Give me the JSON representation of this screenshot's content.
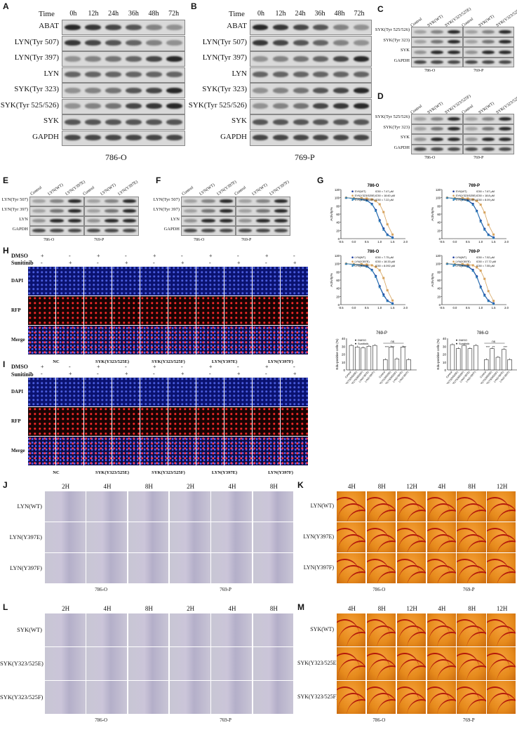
{
  "panels": {
    "A": {
      "label": "A",
      "time_label": "Time",
      "times": [
        "0h",
        "12h",
        "24h",
        "36h",
        "48h",
        "72h"
      ],
      "rows": [
        "ABAT",
        "LYN(Tyr 507)",
        "LYN(Tyr 397)",
        "LYN",
        "SYK(Tyr 323)",
        "SYK(Tyr 525/526)",
        "SYK",
        "GAPDH"
      ],
      "cell_line": "786-O"
    },
    "B": {
      "label": "B",
      "time_label": "Time",
      "times": [
        "0h",
        "12h",
        "24h",
        "36h",
        "48h",
        "72h"
      ],
      "rows": [
        "ABAT",
        "LYN(Tyr 507)",
        "LYN(Tyr 397)",
        "LYN",
        "SYK(Tyr 323)",
        "SYK(Tyr 525/526)",
        "SYK",
        "GAPDH"
      ],
      "cell_line": "769-P"
    },
    "C": {
      "label": "C",
      "columns": [
        "Control",
        "SYK(WT)",
        "SYK(Y323/525E)",
        "Control",
        "SYK(WT)",
        "SYK(Y323/525E)"
      ],
      "rows": [
        "SYK(Tyr 525/526)",
        "SYK(Tyr 323)",
        "SYK",
        "GAPDH"
      ],
      "cell_lines": [
        "786-O",
        "769-P"
      ]
    },
    "D": {
      "label": "D",
      "columns": [
        "Control",
        "SYK(WT)",
        "SYK(Y323/525F)",
        "Control",
        "SYK(WT)",
        "SYK(Y323/525F)"
      ],
      "rows": [
        "SYK(Tyr 525/526)",
        "SYK(Tyr 323)",
        "SYK",
        "GAPDH"
      ],
      "cell_lines": [
        "786-O",
        "769-P"
      ]
    },
    "E": {
      "label": "E",
      "columns": [
        "Control",
        "LYN(WT)",
        "LYN(Y397E)",
        "Control",
        "LYN(WT)",
        "LYN(Y397E)"
      ],
      "rows": [
        "LYN(Tyr 507)",
        "LYN(Tyr 397)",
        "LYN",
        "GAPDH"
      ],
      "cell_lines": [
        "786-O",
        "769-P"
      ]
    },
    "F": {
      "label": "F",
      "columns": [
        "Control",
        "LYN(WT)",
        "LYN(Y397F)",
        "Control",
        "LYN(WT)",
        "LYN(Y397F)"
      ],
      "rows": [
        "LYN(Tyr 507)",
        "LYN(Tyr 397)",
        "LYN",
        "GAPDH"
      ],
      "cell_lines": [
        "786-O",
        "769-P"
      ]
    },
    "G": {
      "label": "G"
    },
    "H": {
      "label": "H",
      "dmso_label": "DMSO",
      "sun_label": "Sunitinib",
      "dmso_signs": [
        "+",
        "-",
        "+",
        "-",
        "+",
        "-",
        "+",
        "-",
        "+",
        "-",
        "+",
        "-"
      ],
      "sun_signs": [
        "-",
        "+",
        "-",
        "+",
        "-",
        "+",
        "-",
        "+",
        "-",
        "+",
        "-",
        "+"
      ],
      "rows": [
        "DAPI",
        "RFP",
        "Merge"
      ],
      "groups": [
        "NC",
        "SYK(Y323/525E)",
        "SYK(Y323/525F)",
        "LYN(Y397E)",
        "LYN(Y397F)"
      ]
    },
    "I": {
      "label": "I",
      "dmso_label": "DMSO",
      "sun_label": "Sunitinib",
      "dmso_signs": [
        "+",
        "-",
        "+",
        "-",
        "+",
        "-",
        "+",
        "-",
        "+",
        "-",
        "+",
        "-"
      ],
      "sun_signs": [
        "-",
        "+",
        "-",
        "+",
        "-",
        "+",
        "-",
        "+",
        "-",
        "+",
        "-",
        "+"
      ],
      "rows": [
        "DAPI",
        "RFP",
        "Merge"
      ],
      "groups": [
        "NC",
        "SYK(Y323/525E)",
        "SYK(Y323/525F)",
        "LYN(Y397E)",
        "LYN(Y397F)"
      ]
    },
    "J": {
      "label": "J",
      "times": [
        "2H",
        "4H",
        "8H",
        "2H",
        "4H",
        "8H"
      ],
      "rows": [
        "LYN(WT)",
        "LYN(Y397E)",
        "LYN(Y397F)"
      ],
      "cell_lines": [
        "786-O",
        "769-P"
      ]
    },
    "K": {
      "label": "K",
      "times": [
        "4H",
        "8H",
        "12H",
        "4H",
        "8H",
        "12H"
      ],
      "rows": [
        "LYN(WT)",
        "LYN(Y397E)",
        "LYN(Y397F)"
      ],
      "cell_lines": [
        "786-O",
        "769-P"
      ]
    },
    "L": {
      "label": "L",
      "times": [
        "2H",
        "4H",
        "8H",
        "2H",
        "4H",
        "8H"
      ],
      "rows": [
        "SYK(WT)",
        "SYK(Y323/525E)",
        "SYK(Y323/525F)"
      ],
      "cell_lines": [
        "786-O",
        "769-P"
      ]
    },
    "M": {
      "label": "M",
      "times": [
        "4H",
        "8H",
        "12H",
        "4H",
        "8H",
        "12H"
      ],
      "rows": [
        "SYK(WT)",
        "SYK(Y323/525E)",
        "SYK(Y323/525F)"
      ],
      "cell_lines": [
        "786-O",
        "769-P"
      ]
    }
  },
  "chart_data": [
    {
      "type": "scatter",
      "title": "786-O",
      "xlim": [
        -0.5,
        2.0
      ],
      "ylim": [
        0,
        120
      ],
      "ylabel": "Activity%",
      "series": [
        {
          "name": "SYK(WT)",
          "ic50": "IC50 = 7.47 μM",
          "color": "#1f3f9f",
          "x": [
            -0.3,
            0,
            0.3,
            0.5,
            0.7,
            0.85,
            1.0,
            1.15,
            1.3,
            1.5
          ],
          "y": [
            100,
            98,
            97,
            94,
            85,
            70,
            45,
            25,
            10,
            3
          ]
        },
        {
          "name": "SYK(Y323/525E)",
          "ic50": "IC50 = 18.60 μM",
          "color": "#d6a25c",
          "x": [
            -0.3,
            0,
            0.3,
            0.5,
            0.7,
            0.85,
            1.0,
            1.15,
            1.3,
            1.5
          ],
          "y": [
            100,
            99,
            99,
            98,
            96,
            92,
            84,
            65,
            35,
            10
          ]
        },
        {
          "name": "SYK(Y323/525F)",
          "ic50": "IC50 = 7.22 μM",
          "color": "#2b7fb8",
          "x": [
            -0.3,
            0,
            0.3,
            0.5,
            0.7,
            0.85,
            1.0,
            1.15,
            1.3,
            1.5
          ],
          "y": [
            100,
            98,
            96,
            93,
            84,
            68,
            43,
            22,
            9,
            2
          ]
        }
      ]
    },
    {
      "type": "scatter",
      "title": "769-P",
      "xlim": [
        -0.5,
        2.0
      ],
      "ylim": [
        0,
        120
      ],
      "ylabel": "Activity%",
      "series": [
        {
          "name": "SYK(WT)",
          "ic50": "IC50 = 7.67 μM",
          "color": "#1f3f9f",
          "x": [
            -0.3,
            0,
            0.3,
            0.5,
            0.7,
            0.85,
            1.0,
            1.15,
            1.3,
            1.5
          ],
          "y": [
            100,
            98,
            97,
            94,
            85,
            68,
            44,
            24,
            10,
            3
          ]
        },
        {
          "name": "SYK(Y323/525E)",
          "ic50": "IC50 = 18.8 μM",
          "color": "#d6a25c",
          "x": [
            -0.3,
            0,
            0.3,
            0.5,
            0.7,
            0.85,
            1.0,
            1.15,
            1.3,
            1.5
          ],
          "y": [
            100,
            99,
            99,
            98,
            96,
            92,
            83,
            64,
            34,
            10
          ]
        },
        {
          "name": "SYK(Y323/525F)",
          "ic50": "IC50 = 8.09 μM",
          "color": "#2b7fb8",
          "x": [
            -0.3,
            0,
            0.3,
            0.5,
            0.7,
            0.85,
            1.0,
            1.15,
            1.3,
            1.5
          ],
          "y": [
            100,
            98,
            96,
            93,
            83,
            67,
            42,
            22,
            9,
            2
          ]
        }
      ]
    },
    {
      "type": "scatter",
      "title": "786-O",
      "xlim": [
        -0.5,
        2.0
      ],
      "ylim": [
        0,
        120
      ],
      "ylabel": "Activity%",
      "series": [
        {
          "name": "LYN(WT)",
          "ic50": "IC50 = 7.75 μM",
          "color": "#1f3f9f",
          "x": [
            -0.3,
            0,
            0.3,
            0.5,
            0.7,
            0.85,
            1.0,
            1.15,
            1.3,
            1.5
          ],
          "y": [
            100,
            98,
            97,
            94,
            85,
            70,
            45,
            25,
            10,
            3
          ]
        },
        {
          "name": "LYN(Y397E)",
          "ic50": "IC50 = 18.33 μM",
          "color": "#d6a25c",
          "x": [
            -0.3,
            0,
            0.3,
            0.5,
            0.7,
            0.85,
            1.0,
            1.15,
            1.3,
            1.5
          ],
          "y": [
            100,
            99,
            99,
            98,
            96,
            92,
            84,
            65,
            35,
            10
          ]
        },
        {
          "name": "LYN(Y397F)",
          "ic50": "IC50 = 8.092 μM",
          "color": "#2b7fb8",
          "x": [
            -0.3,
            0,
            0.3,
            0.5,
            0.7,
            0.85,
            1.0,
            1.15,
            1.3,
            1.5
          ],
          "y": [
            100,
            98,
            96,
            93,
            84,
            68,
            43,
            22,
            9,
            2
          ]
        }
      ]
    },
    {
      "type": "scatter",
      "title": "769-P",
      "xlim": [
        -0.5,
        2.0
      ],
      "ylim": [
        0,
        120
      ],
      "ylabel": "Activity%",
      "series": [
        {
          "name": "LYN(WT)",
          "ic50": "IC50 = 7.52 μM",
          "color": "#1f3f9f",
          "x": [
            -0.3,
            0,
            0.3,
            0.5,
            0.7,
            0.85,
            1.0,
            1.15,
            1.3,
            1.5
          ],
          "y": [
            100,
            98,
            97,
            94,
            85,
            69,
            44,
            24,
            10,
            3
          ]
        },
        {
          "name": "LYN(Y397E)",
          "ic50": "IC50 = 17.72 μM",
          "color": "#d6a25c",
          "x": [
            -0.3,
            0,
            0.3,
            0.5,
            0.7,
            0.85,
            1.0,
            1.15,
            1.3,
            1.5
          ],
          "y": [
            100,
            99,
            99,
            98,
            96,
            91,
            83,
            63,
            33,
            9
          ]
        },
        {
          "name": "LYN(Y397F)",
          "ic50": "IC50 = 7.55 μM",
          "color": "#2b7fb8",
          "x": [
            -0.3,
            0,
            0.3,
            0.5,
            0.7,
            0.85,
            1.0,
            1.15,
            1.3,
            1.5
          ],
          "y": [
            100,
            98,
            96,
            93,
            83,
            67,
            42,
            22,
            9,
            2
          ]
        }
      ]
    },
    {
      "type": "bar",
      "title": "769-P",
      "ylabel": "Edu-positive cells (%)",
      "ylim": [
        0,
        40
      ],
      "categories": [
        "Control",
        "SYK(Y323/525E)",
        "SYK(Y323/525F)",
        "LYN(Y397E)",
        "LYN(Y397F)",
        "Control",
        "SYK(Y323/525E)",
        "SYK(Y323/525F)",
        "LYN(Y397E)",
        "LYN(Y397F)"
      ],
      "legend": [
        "DMSO",
        "Sunitinib"
      ],
      "values": [
        31,
        29,
        28,
        30,
        31,
        13,
        29,
        14,
        29,
        13
      ],
      "annotations": [
        "ns",
        "***",
        "***",
        "***"
      ]
    },
    {
      "type": "bar",
      "title": "786-O",
      "ylabel": "Edu-positive cells (%)",
      "ylim": [
        0,
        40
      ],
      "categories": [
        "Control",
        "SYK(Y323/525E)",
        "SYK(Y323/525F)",
        "LYN(Y397E)",
        "LYN(Y397F)",
        "Control",
        "SYK(Y323/525E)",
        "SYK(Y323/525F)",
        "LYN(Y397E)",
        "LYN(Y397F)"
      ],
      "legend": [
        "DMSO",
        "Sunitinib"
      ],
      "values": [
        32,
        27,
        31,
        27,
        31,
        13,
        27,
        16,
        26,
        13
      ],
      "annotations": [
        "ns",
        "***",
        "**",
        "***"
      ]
    }
  ]
}
